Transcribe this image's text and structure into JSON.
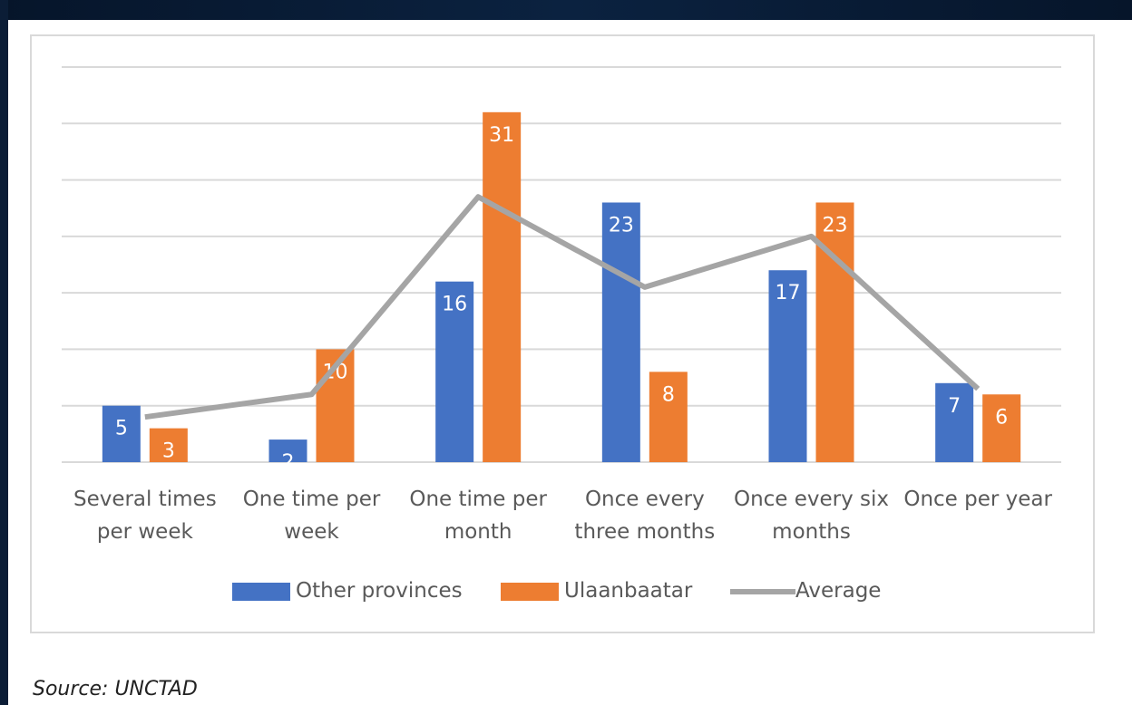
{
  "chart_data": {
    "type": "bar",
    "categories": [
      "Several times per week",
      "One time per week",
      "One time per month",
      "Once every three months",
      "Once every six months",
      "Once per year"
    ],
    "series": [
      {
        "name": "Other provinces",
        "color": "#4472c4",
        "type": "bar",
        "values": [
          5,
          2,
          16,
          23,
          17,
          7
        ]
      },
      {
        "name": "Ulaanbaatar",
        "color": "#ed7d31",
        "type": "bar",
        "values": [
          3,
          10,
          31,
          8,
          23,
          6
        ]
      },
      {
        "name": "Average",
        "color": "#a5a5a5",
        "type": "line",
        "values": [
          4,
          6,
          23.5,
          15.5,
          20,
          6.5
        ]
      }
    ],
    "ylim": [
      0,
      35
    ],
    "yticks": [
      0,
      5,
      10,
      15,
      20,
      25,
      30,
      35
    ],
    "grid": true
  },
  "source": "Source: UNCTAD"
}
